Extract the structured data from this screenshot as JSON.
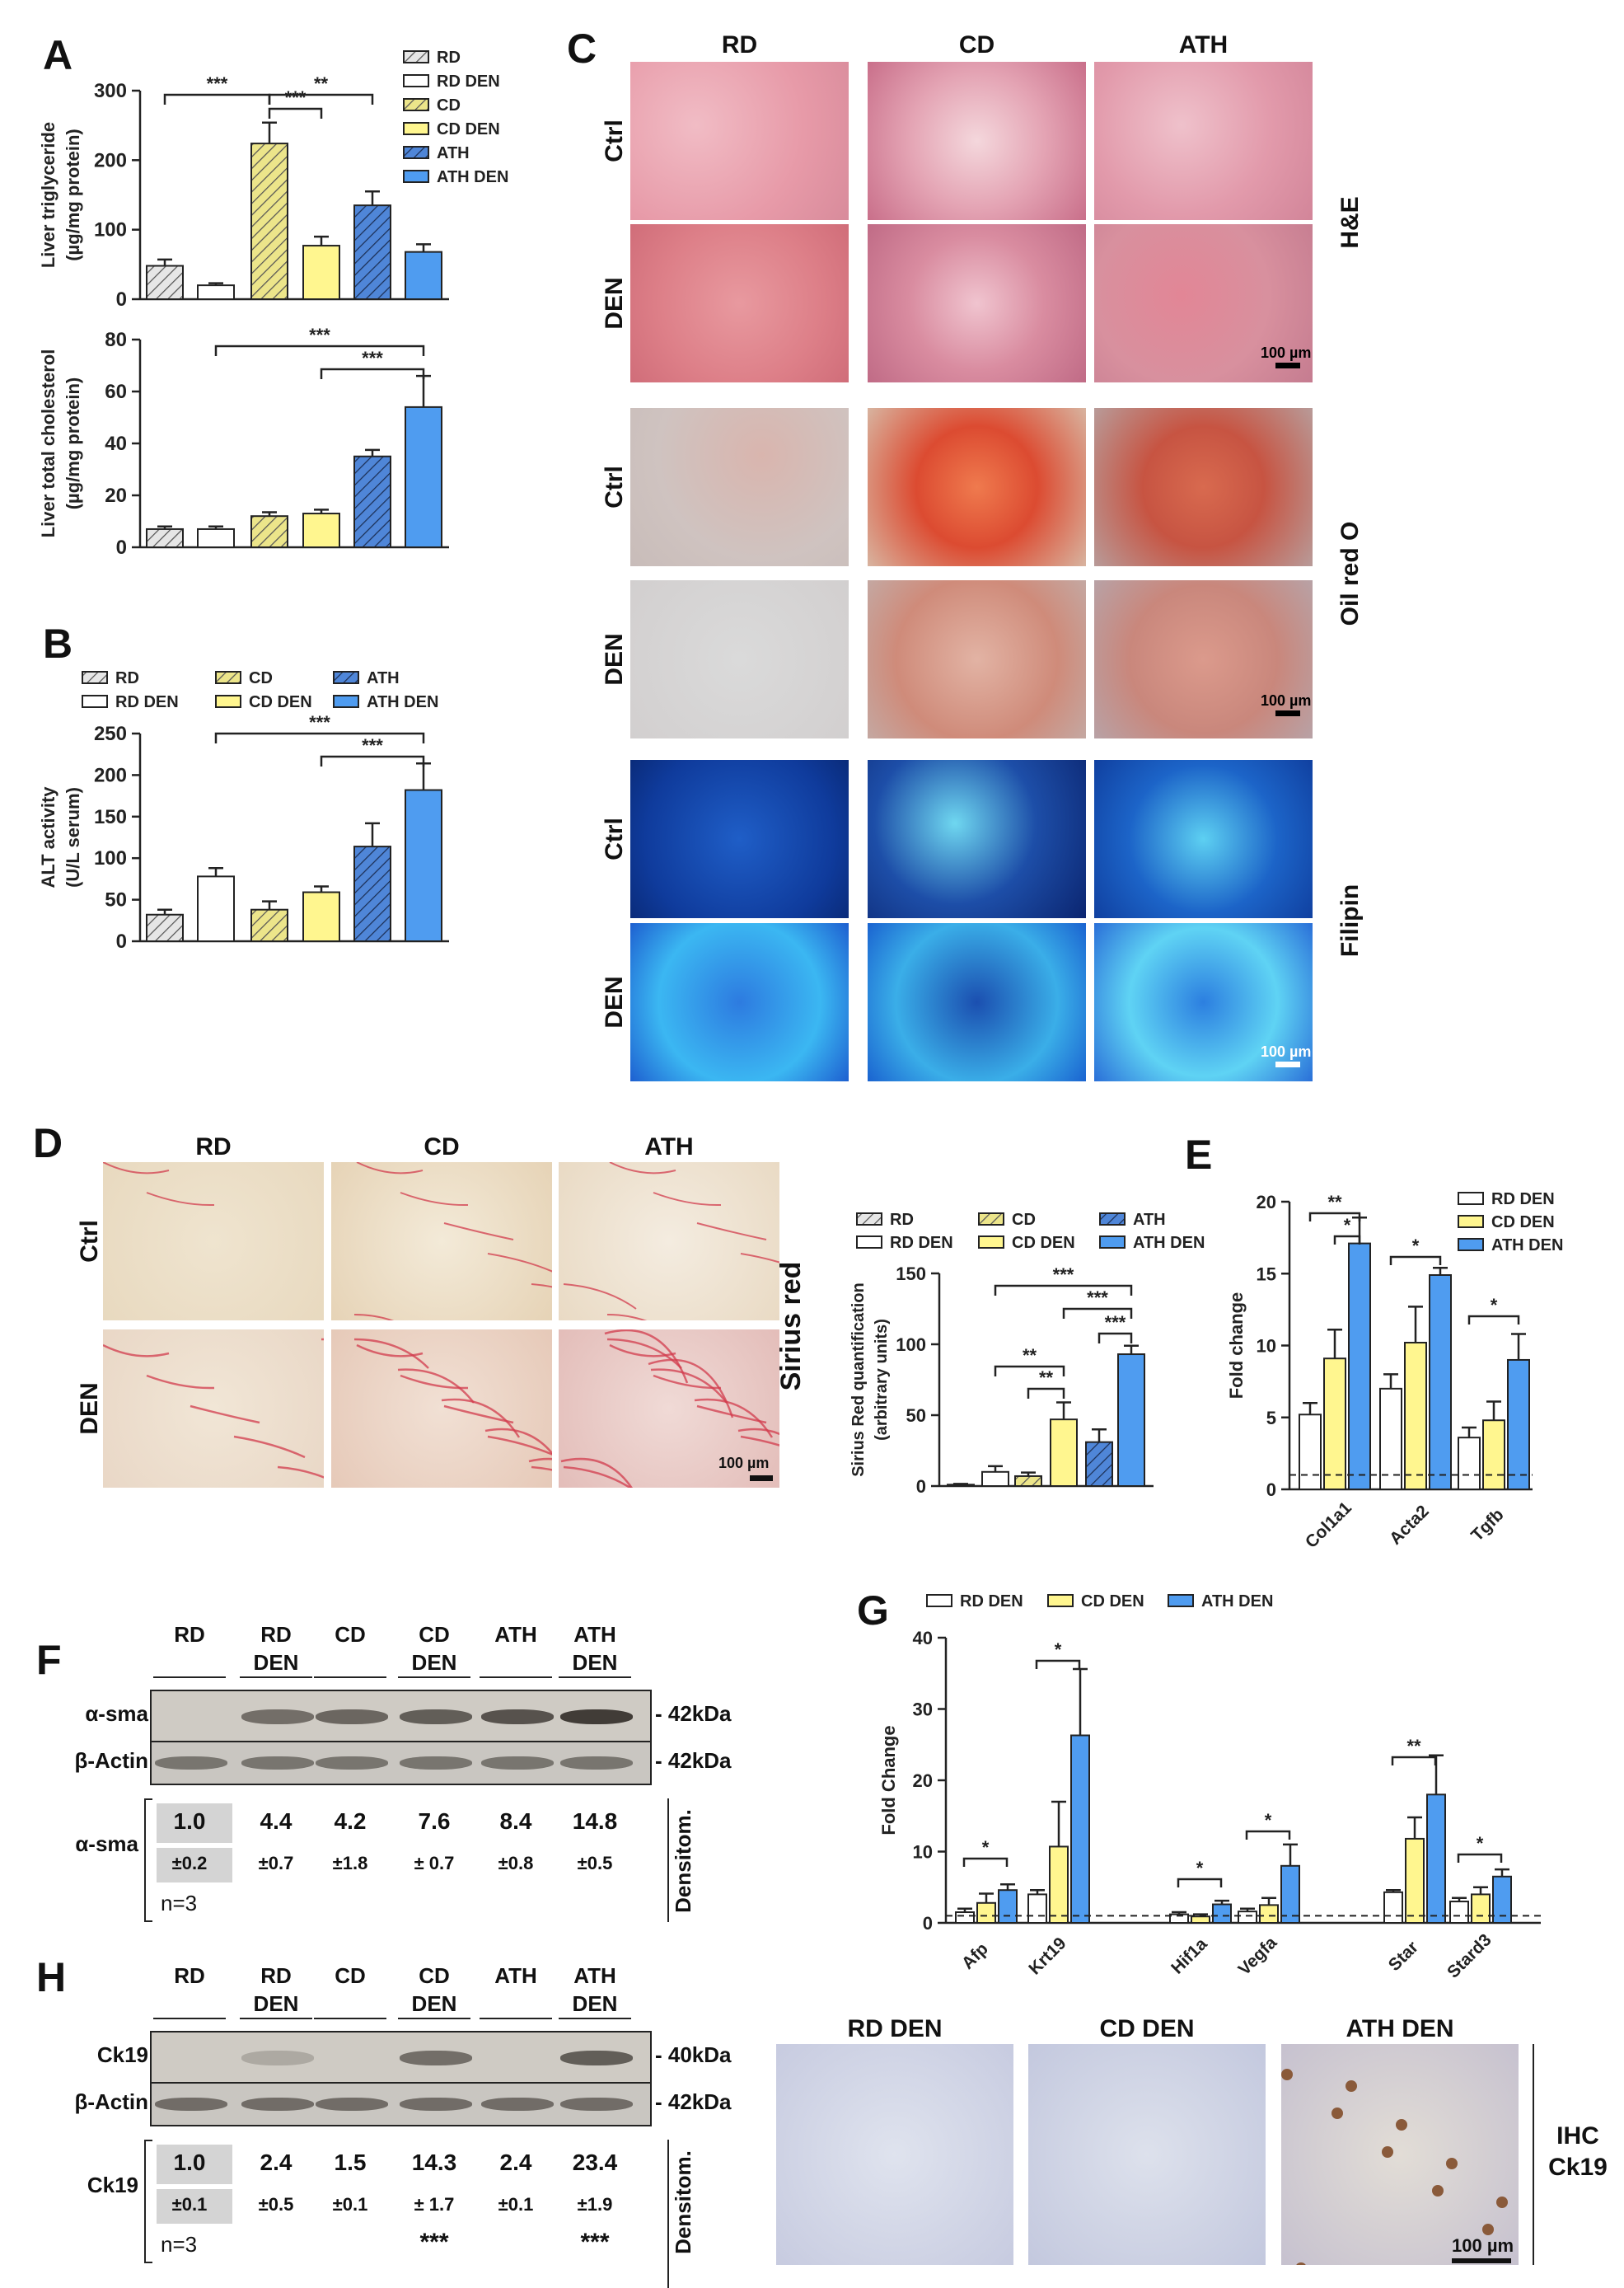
{
  "panels": {
    "A": "A",
    "B": "B",
    "C": "C",
    "D": "D",
    "E": "E",
    "F": "F",
    "G": "G",
    "H": "H"
  },
  "legend6": [
    "RD",
    "RD DEN",
    "CD",
    "CD DEN",
    "ATH",
    "ATH DEN"
  ],
  "legend3": [
    "RD DEN",
    "CD DEN",
    "ATH DEN"
  ],
  "colors": {
    "rd": "#dcdcdc",
    "rdden": "#ffffff",
    "cd": "#e6e07a",
    "cdden": "#fff68f",
    "ath": "#3f72c4",
    "athden": "#4f9cf0"
  },
  "sig": {
    "s1": "*",
    "s2": "**",
    "s3": "***"
  },
  "chart_data": [
    {
      "id": "A-top",
      "type": "bar",
      "categories": [
        "RD",
        "RD DEN",
        "CD",
        "CD DEN",
        "ATH",
        "ATH DEN"
      ],
      "values": [
        48,
        20,
        224,
        77,
        135,
        68
      ],
      "errors": [
        9,
        3,
        30,
        13,
        20,
        11
      ],
      "ylabel": "Liver triglyceride\n(µg/mg protein)",
      "ylim": [
        0,
        300
      ],
      "yticks": [
        0,
        100,
        200,
        300
      ]
    },
    {
      "id": "A-bottom",
      "type": "bar",
      "categories": [
        "RD",
        "RD DEN",
        "CD",
        "CD DEN",
        "ATH",
        "ATH DEN"
      ],
      "values": [
        7,
        7,
        12,
        13,
        35,
        54
      ],
      "errors": [
        1,
        1,
        1.5,
        1.5,
        2.5,
        12
      ],
      "ylabel": "Liver total cholesterol\n(µg/mg protein)",
      "ylim": [
        0,
        80
      ],
      "yticks": [
        0,
        20,
        40,
        60,
        80
      ]
    },
    {
      "id": "B",
      "type": "bar",
      "categories": [
        "RD",
        "RD DEN",
        "CD",
        "CD DEN",
        "ATH",
        "ATH DEN"
      ],
      "values": [
        32,
        78,
        38,
        59,
        114,
        182
      ],
      "errors": [
        6,
        10,
        10,
        7,
        28,
        32
      ],
      "ylabel": "ALT activity\n(U/L serum)",
      "ylim": [
        0,
        250
      ],
      "yticks": [
        0,
        50,
        100,
        150,
        200,
        250
      ]
    },
    {
      "id": "D-quant",
      "type": "bar",
      "categories": [
        "RD",
        "RD DEN",
        "CD",
        "CD DEN",
        "ATH",
        "ATH DEN"
      ],
      "values": [
        1,
        10,
        7,
        47,
        31,
        93
      ],
      "errors": [
        0.5,
        4,
        2.5,
        12,
        9,
        6
      ],
      "ylabel": "Sirius Red quantification\n(arbitrary units)",
      "ylim": [
        0,
        150
      ],
      "yticks": [
        0,
        50,
        100,
        150
      ]
    },
    {
      "id": "E",
      "type": "bar",
      "categories": [
        "Col1a1",
        "Acta2",
        "Tgfb"
      ],
      "series": [
        {
          "name": "RD DEN",
          "values": [
            5.2,
            7.0,
            3.6
          ],
          "errors": [
            0.8,
            1.0,
            0.7
          ]
        },
        {
          "name": "CD DEN",
          "values": [
            9.1,
            10.2,
            4.8
          ],
          "errors": [
            2.0,
            2.5,
            1.3
          ]
        },
        {
          "name": "ATH DEN",
          "values": [
            17.1,
            14.9,
            9.0
          ],
          "errors": [
            1.8,
            0.5,
            1.8
          ]
        }
      ],
      "ylabel": "Fold change",
      "ylim": [
        0,
        20
      ],
      "yticks": [
        0,
        5,
        10,
        15,
        20
      ]
    },
    {
      "id": "G",
      "type": "bar",
      "categories": [
        "Afp",
        "Krt19",
        "Hif1a",
        "Vegfa",
        "Star",
        "Stard3"
      ],
      "series": [
        {
          "name": "RD DEN",
          "values": [
            1.5,
            4.0,
            1.2,
            1.6,
            4.3,
            3.0
          ],
          "errors": [
            0.5,
            0.6,
            0.3,
            0.4,
            0.3,
            0.5
          ]
        },
        {
          "name": "CD DEN",
          "values": [
            2.8,
            10.7,
            0.9,
            2.5,
            11.8,
            4.0
          ],
          "errors": [
            1.3,
            6.3,
            0.3,
            1.0,
            3.0,
            1.0
          ]
        },
        {
          "name": "ATH DEN",
          "values": [
            4.6,
            26.3,
            2.6,
            8.0,
            18.0,
            6.5
          ],
          "errors": [
            0.8,
            9.3,
            0.5,
            3.0,
            5.5,
            1.0
          ]
        }
      ],
      "ylabel": "Fold Change",
      "ylim": [
        0,
        40
      ],
      "yticks": [
        0,
        10,
        20,
        30,
        40
      ]
    }
  ],
  "C": {
    "cols": [
      "RD",
      "CD",
      "ATH"
    ],
    "rows": [
      "Ctrl",
      "DEN"
    ],
    "stains": [
      "H&E",
      "Oil red O",
      "Filipin"
    ],
    "scale": "100 µm"
  },
  "D": {
    "cols": [
      "RD",
      "CD",
      "ATH"
    ],
    "rows": [
      "Ctrl",
      "DEN"
    ],
    "stain": "Sirius red",
    "scale": "100 µm"
  },
  "F": {
    "lanes": [
      "RD",
      "RD\nDEN",
      "CD",
      "CD\nDEN",
      "ATH",
      "ATH\nDEN"
    ],
    "rows": [
      "α-sma",
      "β-Actin"
    ],
    "kda": [
      "- 42kDa",
      "- 42kDa"
    ],
    "densLabel": "α-sma",
    "means": [
      "1.0",
      "4.4",
      "4.2",
      "7.6",
      "8.4",
      "14.8"
    ],
    "sds": [
      "±0.2",
      "±0.7",
      "±1.8",
      "± 0.7",
      "±0.8",
      "±0.5"
    ],
    "n": "n=3",
    "densitom": "Densitom."
  },
  "H": {
    "lanes": [
      "RD",
      "RD\nDEN",
      "CD",
      "CD\nDEN",
      "ATH",
      "ATH\nDEN"
    ],
    "rows": [
      "Ck19",
      "β-Actin"
    ],
    "kda": [
      "- 40kDa",
      "- 42kDa"
    ],
    "densLabel": "Ck19",
    "means": [
      "1.0",
      "2.4",
      "1.5",
      "14.3",
      "2.4",
      "23.4"
    ],
    "sds": [
      "±0.1",
      "±0.5",
      "±0.1",
      "± 1.7",
      "±0.1",
      "±1.9"
    ],
    "n": "n=3",
    "stars": [
      "***",
      "***"
    ],
    "densitom": "Densitom.",
    "ihcCols": [
      "RD DEN",
      "CD DEN",
      "ATH DEN"
    ],
    "ihcLabel": "IHC\nCk19",
    "scale": "100 µm"
  }
}
